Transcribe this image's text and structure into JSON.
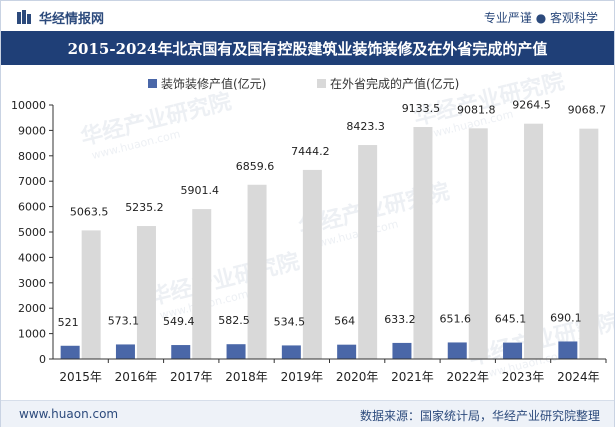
{
  "header": {
    "brand": "华经情报网",
    "slogan": "专业严谨 ● 客观科学"
  },
  "footer": {
    "site": "www.huaon.com",
    "source": "数据来源：国家统计局，华经产业研究院整理"
  },
  "watermark": {
    "cn": "华经产业研究院",
    "en": "www.huaon.com"
  },
  "colors": {
    "series1": "#4a67a8",
    "series2": "#d9d9d9",
    "title_bg": "#1f3f77"
  },
  "chart_data": {
    "type": "bar",
    "title": "2015-2024年北京国有及国有控股建筑业装饰装修及在外省完成的产值",
    "categories": [
      "2015年",
      "2016年",
      "2017年",
      "2018年",
      "2019年",
      "2020年",
      "2021年",
      "2022年",
      "2023年",
      "2024年"
    ],
    "series": [
      {
        "name": "装饰装修产值(亿元)",
        "values": [
          521,
          573.1,
          549.4,
          582.5,
          534.5,
          564,
          633.2,
          651.6,
          645.1,
          690.1
        ]
      },
      {
        "name": "在外省完成的产值(亿元)",
        "values": [
          5063.5,
          5235.2,
          5901.4,
          6859.6,
          7444.2,
          8423.3,
          9133.5,
          9081.8,
          9264.5,
          9068.7
        ]
      }
    ],
    "value_labels": {
      "series0": [
        "521",
        "573.1",
        "549.4",
        "582.5",
        "534.5",
        "564",
        "633.2",
        "651.6",
        "645.1",
        "690.1"
      ],
      "series1": [
        "5063.5",
        "5235.2",
        "5901.4",
        "6859.6",
        "7444.2",
        "8423.3",
        "9133.5",
        "9081.8",
        "9264.5",
        "9068.7"
      ]
    },
    "y_ticks": [
      "0",
      "1000",
      "2000",
      "3000",
      "4000",
      "5000",
      "6000",
      "7000",
      "8000",
      "9000",
      "10000"
    ],
    "ylim": [
      0,
      10000
    ],
    "xlabel": "",
    "ylabel": "",
    "grid": false,
    "legend_position": "top-center"
  }
}
